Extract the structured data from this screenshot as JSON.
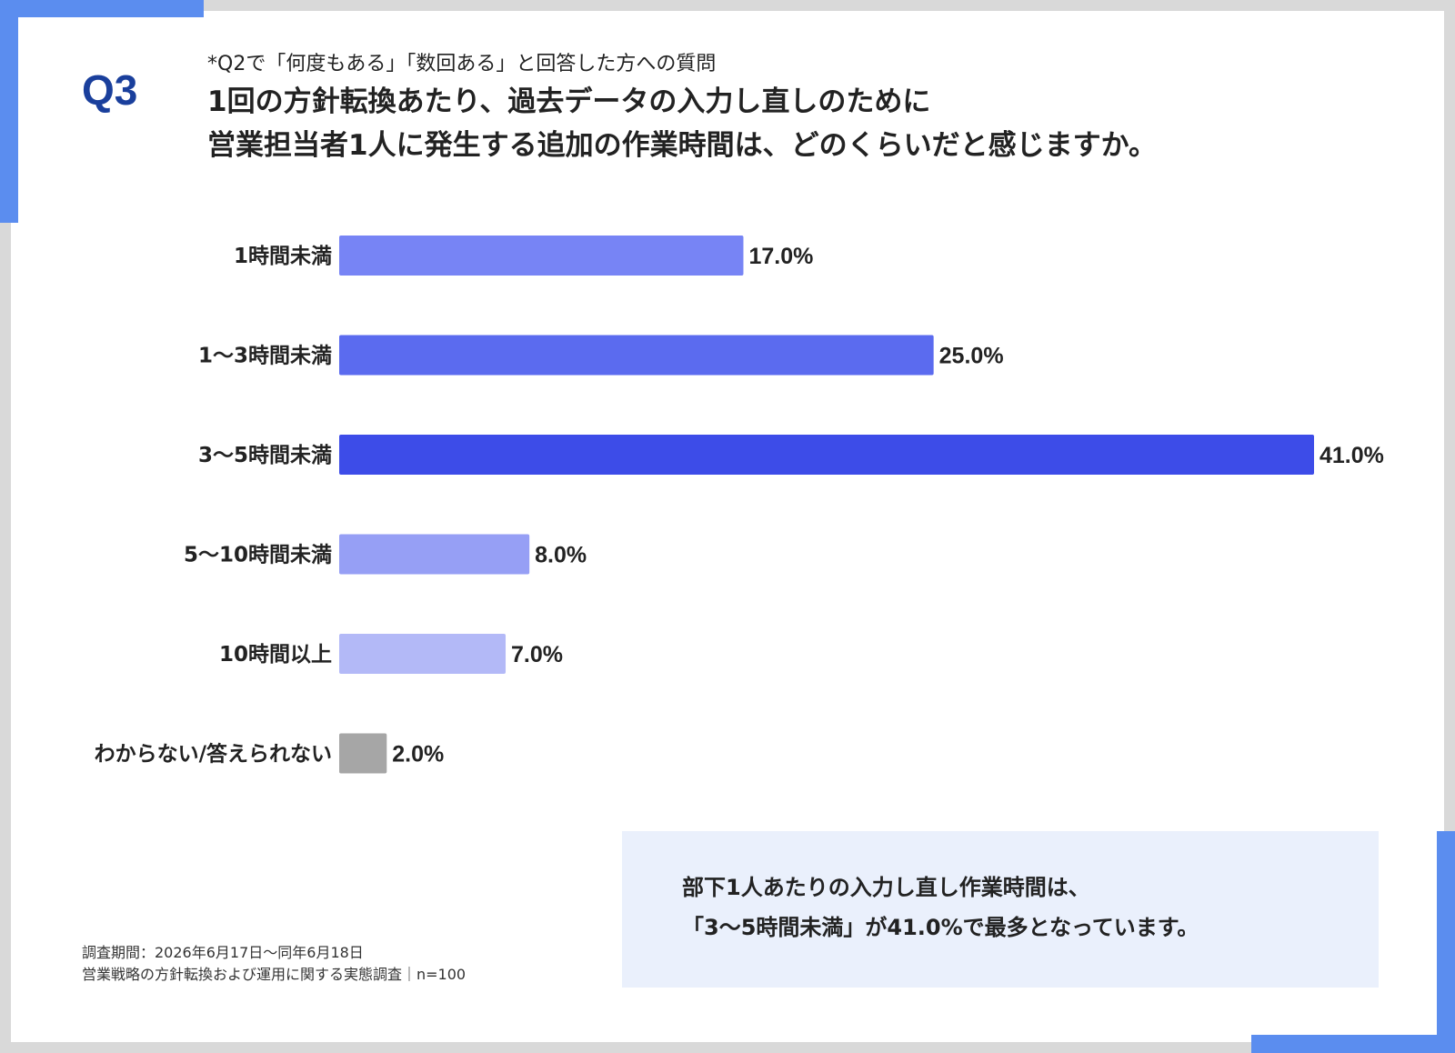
{
  "header": {
    "question_label": "Q3",
    "subtitle": "*Q2で「何度もある」「数回ある」と回答した方への質問",
    "title_line1": "1回の方針転換あたり、過去データの入力し直しのために",
    "title_line2": "営業担当者1人に発生する追加の作業時間は、どのくらいだと感じますか。"
  },
  "chart_data": {
    "type": "bar",
    "orientation": "horizontal",
    "categories": [
      "1時間未満",
      "1～3時間未満",
      "3～5時間未満",
      "5～10時間未満",
      "10時間以上",
      "わからない/答えられない"
    ],
    "values": [
      17.0,
      25.0,
      41.0,
      8.0,
      7.0,
      2.0
    ],
    "value_labels": [
      "17.0%",
      "25.0%",
      "41.0%",
      "8.0%",
      "7.0%",
      "2.0%"
    ],
    "colors": [
      "#7784f5",
      "#5b6bef",
      "#3d4ce8",
      "#969ff5",
      "#b3b9f7",
      "#a6a6a6"
    ],
    "xlim": [
      0,
      41
    ],
    "grid": false
  },
  "note": {
    "line1": "部下1人あたりの入力し直し作業時間は、",
    "line2": "「3～5時間未満」が41.0%で最多となっています。"
  },
  "source": {
    "line1": "調査期間：2026年6月17日～同年6月18日",
    "line2": "営業戦略の方針転換および運用に関する実態調査｜n=100"
  }
}
